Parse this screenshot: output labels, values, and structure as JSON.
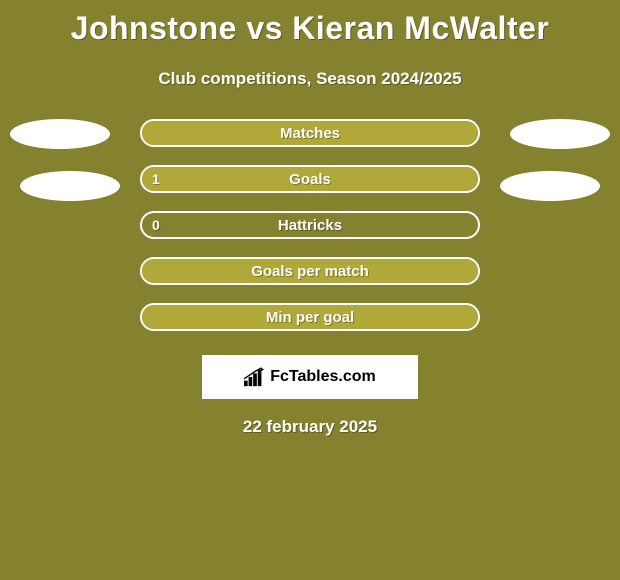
{
  "title": "Johnstone vs Kieran McWalter",
  "subtitle": "Club competitions, Season 2024/2025",
  "background_color": "#84822f",
  "text_color": "#ffffff",
  "bars": [
    {
      "label": "Matches",
      "left_value": "",
      "fill_color": "#b0a93a",
      "fill_width_percent": 100
    },
    {
      "label": "Goals",
      "left_value": "1",
      "fill_color": "#b0a93a",
      "fill_width_percent": 100
    },
    {
      "label": "Hattricks",
      "left_value": "0",
      "fill_color": "#84822f",
      "fill_width_percent": 0
    },
    {
      "label": "Goals per match",
      "left_value": "",
      "fill_color": "#b0a93a",
      "fill_width_percent": 100
    },
    {
      "label": "Min per goal",
      "left_value": "",
      "fill_color": "#b0a93a",
      "fill_width_percent": 100
    }
  ],
  "logo": {
    "text": "FcTables.com",
    "icon_color": "#000000"
  },
  "date": "22 february 2025",
  "ellipses": {
    "color": "#ffffff"
  }
}
